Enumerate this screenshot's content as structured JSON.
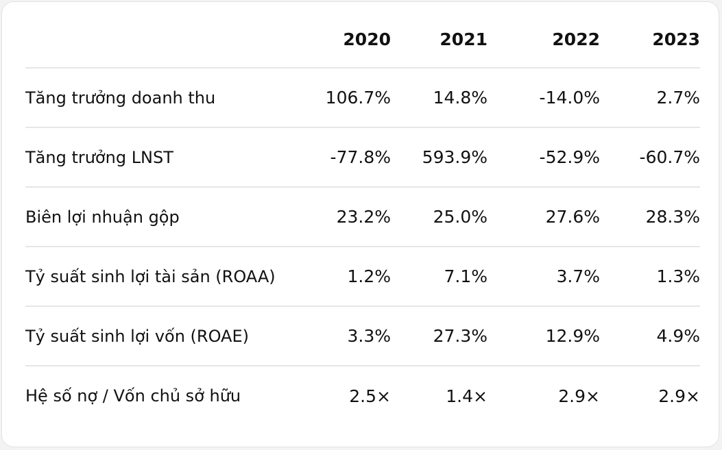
{
  "table": {
    "header": {
      "label": "",
      "years": [
        "2020",
        "2021",
        "2022",
        "2023"
      ]
    },
    "rows": [
      {
        "label": "Tăng trưởng doanh thu",
        "values": [
          "106.7%",
          "14.8%",
          "-14.0%",
          "2.7%"
        ]
      },
      {
        "label": "Tăng trưởng LNST",
        "values": [
          "-77.8%",
          "593.9%",
          "-52.9%",
          "-60.7%"
        ]
      },
      {
        "label": "Biên lợi nhuận gộp",
        "values": [
          "23.2%",
          "25.0%",
          "27.6%",
          "28.3%"
        ]
      },
      {
        "label": "Tỷ suất sinh lợi tài sản (ROAA)",
        "values": [
          "1.2%",
          "7.1%",
          "3.7%",
          "1.3%"
        ]
      },
      {
        "label": "Tỷ suất sinh lợi vốn (ROAE)",
        "values": [
          "3.3%",
          "27.3%",
          "12.9%",
          "4.9%"
        ]
      },
      {
        "label": "Hệ số nợ / Vốn chủ sở hữu",
        "values": [
          "2.5×",
          "1.4×",
          "2.9×",
          "2.9×"
        ]
      }
    ]
  }
}
